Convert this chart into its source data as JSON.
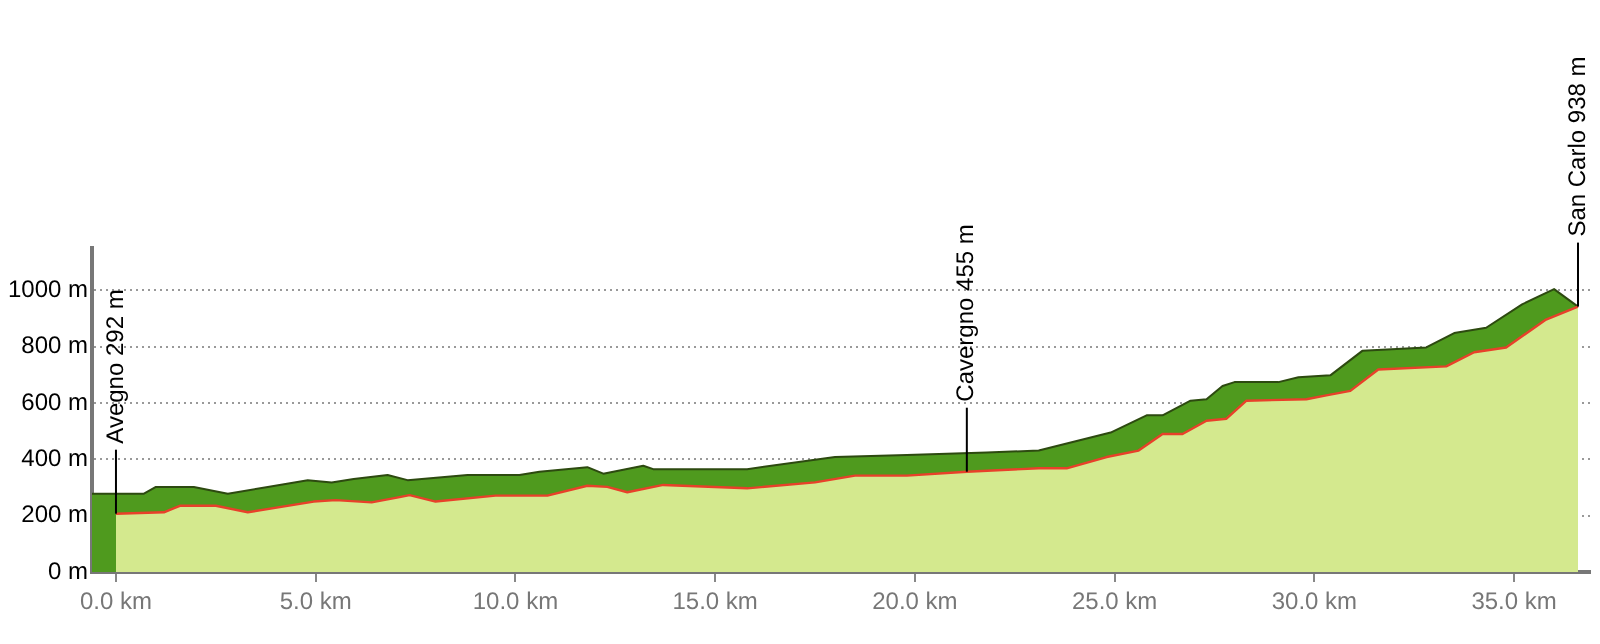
{
  "chart_data": {
    "type": "area",
    "xlim": [
      -0.6,
      36.9
    ],
    "ylim": [
      0,
      1150
    ],
    "xticks": [
      {
        "value": 0,
        "label": "0.0 km"
      },
      {
        "value": 5,
        "label": "5.0 km"
      },
      {
        "value": 10,
        "label": "10.0 km"
      },
      {
        "value": 15,
        "label": "15.0 km"
      },
      {
        "value": 20,
        "label": "20.0 km"
      },
      {
        "value": 25,
        "label": "25.0 km"
      },
      {
        "value": 30,
        "label": "30.0 km"
      },
      {
        "value": 35,
        "label": "35.0 km"
      }
    ],
    "yticks": [
      {
        "value": 0,
        "label": "0 m"
      },
      {
        "value": 200,
        "label": "200 m"
      },
      {
        "value": 400,
        "label": "400 m"
      },
      {
        "value": 600,
        "label": "600 m"
      },
      {
        "value": 800,
        "label": "800 m"
      },
      {
        "value": 1000,
        "label": "1000 m"
      }
    ],
    "grid": "y",
    "legend": false,
    "marker": "none",
    "series": [
      {
        "color": "#4f9a1e",
        "x": [
          -0.6,
          0.7,
          1.0,
          1.95,
          2.8,
          3.8,
          4.8,
          5.4,
          5.95,
          6.8,
          7.3,
          8.8,
          10.1,
          10.6,
          11.8,
          12.2,
          13.2,
          13.45,
          15.8,
          18.0,
          19.8,
          21.8,
          23.1,
          24.9,
          25.8,
          26.2,
          26.9,
          27.3,
          27.7,
          28.0,
          29.1,
          29.6,
          30.4,
          31.2,
          32.8,
          33.5,
          34.3,
          35.2,
          36.0,
          36.6
        ],
        "values": [
          278,
          278,
          302,
          302,
          278,
          302,
          326,
          318,
          330,
          344,
          326,
          344,
          344,
          356,
          372,
          349,
          377,
          365,
          365,
          408,
          415,
          424,
          431,
          495,
          556,
          556,
          608,
          613,
          660,
          674,
          674,
          691,
          698,
          785,
          797,
          848,
          867,
          950,
          1004,
          942
        ]
      },
      {
        "color": "#d4e98e",
        "x": [
          0,
          1.2,
          1.6,
          2.5,
          3.3,
          4.95,
          5.5,
          6.4,
          7.1,
          7.35,
          8.0,
          9.5,
          10.8,
          11.8,
          12.3,
          12.8,
          13.7,
          15.8,
          17.5,
          18.5,
          19.8,
          21.3,
          23.1,
          23.8,
          24.8,
          25.6,
          26.2,
          26.7,
          27.3,
          27.8,
          28.3,
          29.8,
          30.3,
          30.9,
          31.6,
          33.3,
          34.0,
          34.8,
          35.8,
          36.6
        ],
        "values": [
          207,
          212,
          235,
          235,
          212,
          250,
          255,
          247,
          266,
          273,
          250,
          271,
          271,
          306,
          302,
          283,
          309,
          297,
          318,
          342,
          342,
          356,
          368,
          368,
          408,
          431,
          490,
          490,
          537,
          544,
          608,
          613,
          627,
          643,
          719,
          730,
          780,
          797,
          896,
          942
        ]
      }
    ],
    "annotations": [
      {
        "text": "Avegno 292 m",
        "x": 0,
        "y": 207
      },
      {
        "text": "Cavergno 455 m",
        "x": 21.3,
        "y": 356
      },
      {
        "text": "San Carlo 938 m",
        "x": 36.6,
        "y": 942
      }
    ]
  }
}
